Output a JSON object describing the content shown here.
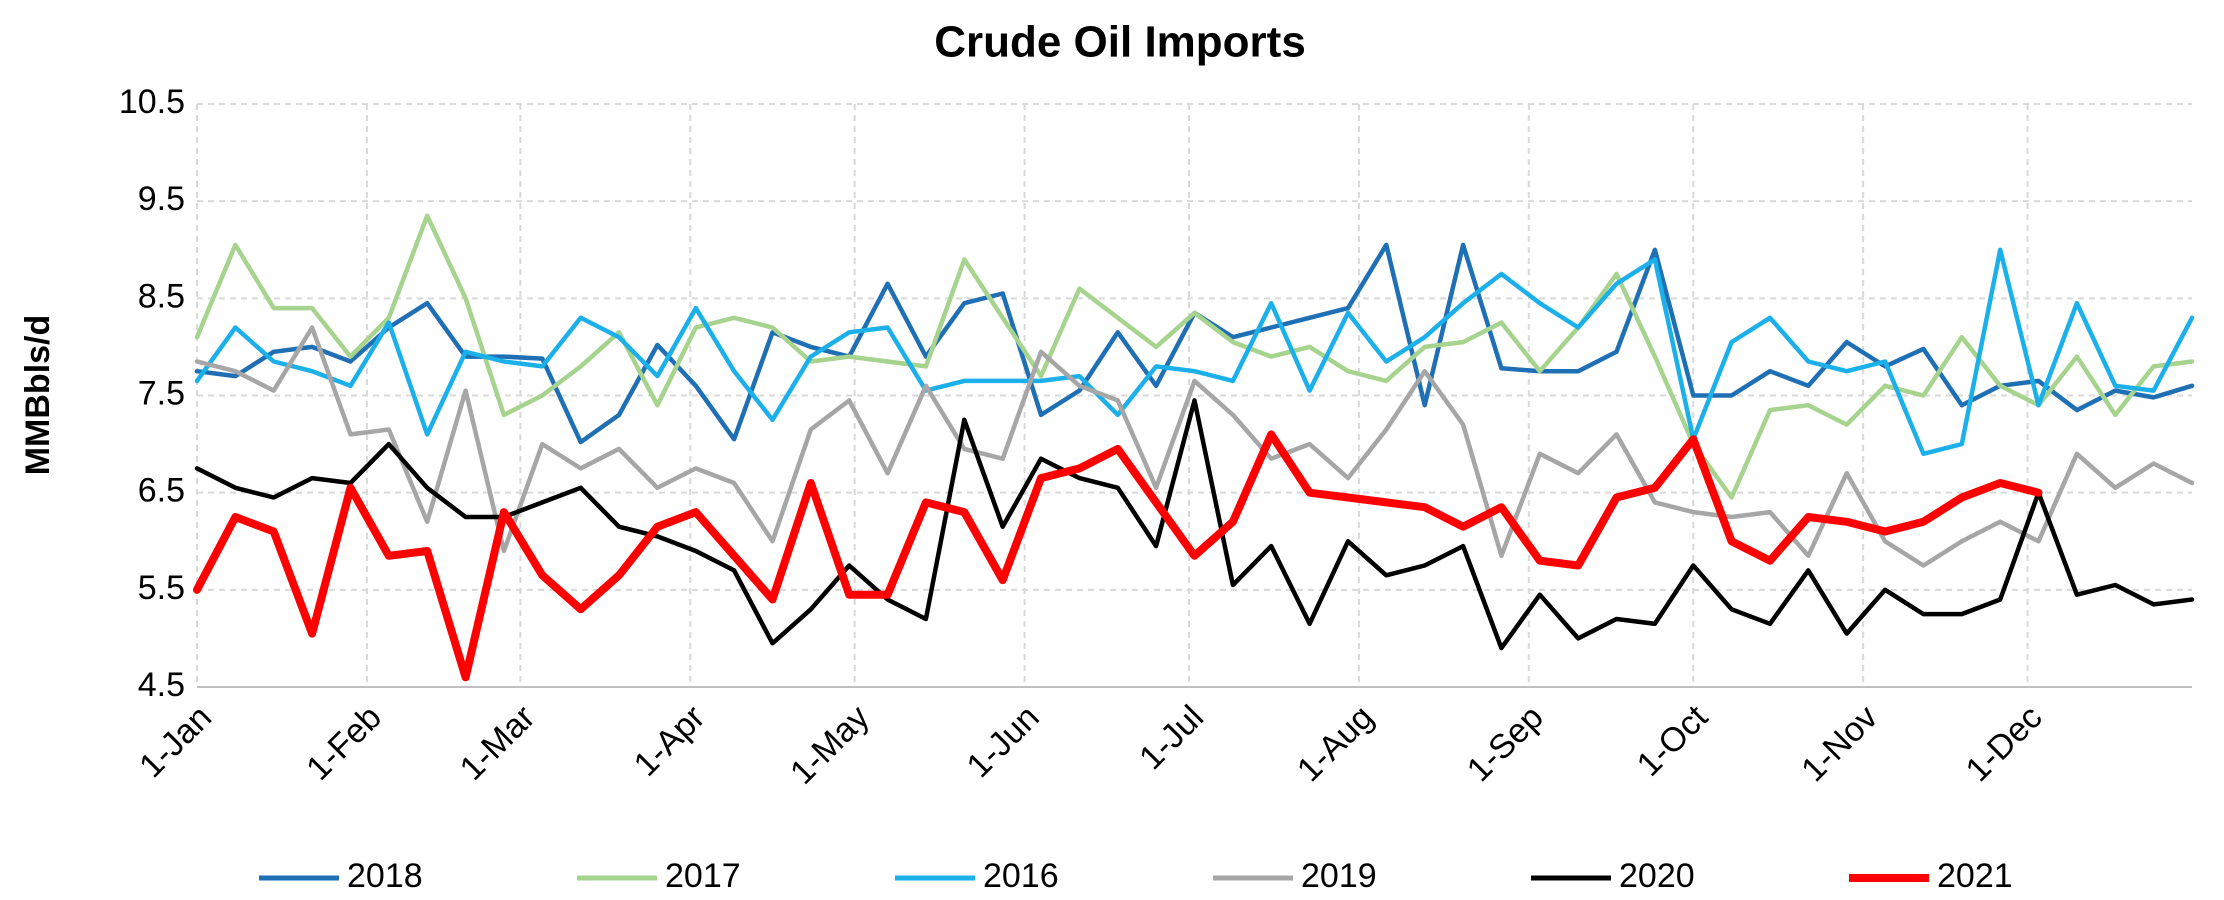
{
  "chart_data": {
    "type": "line",
    "title": "Crude Oil Imports",
    "ylabel": "MMBbls/d",
    "x": [
      1,
      8,
      15,
      22,
      29,
      36,
      43,
      50,
      57,
      64,
      71,
      78,
      85,
      92,
      99,
      106,
      113,
      120,
      127,
      134,
      141,
      148,
      155,
      162,
      169,
      176,
      183,
      190,
      197,
      204,
      211,
      218,
      225,
      232,
      239,
      246,
      253,
      260,
      267,
      274,
      281,
      288,
      295,
      302,
      309,
      316,
      323,
      330,
      337,
      344,
      351,
      358,
      365
    ],
    "xlim": [
      1,
      365
    ],
    "xticks": [
      {
        "value": 1,
        "label": "1-Jan"
      },
      {
        "value": 32,
        "label": "1-Feb"
      },
      {
        "value": 60,
        "label": "1-Mar"
      },
      {
        "value": 91,
        "label": "1-Apr"
      },
      {
        "value": 121,
        "label": "1-May"
      },
      {
        "value": 152,
        "label": "1-Jun"
      },
      {
        "value": 182,
        "label": "1-Jul"
      },
      {
        "value": 213,
        "label": "1-Aug"
      },
      {
        "value": 244,
        "label": "1-Sep"
      },
      {
        "value": 274,
        "label": "1-Oct"
      },
      {
        "value": 305,
        "label": "1-Nov"
      },
      {
        "value": 335,
        "label": "1-Dec"
      }
    ],
    "ylim": [
      4.5,
      10.5
    ],
    "yticks": [
      4.5,
      5.5,
      6.5,
      7.5,
      8.5,
      9.5,
      10.5
    ],
    "grid": true,
    "legend": "bottom",
    "series": [
      {
        "name": "2018",
        "color": "#1f6fb5",
        "values": [
          7.75,
          7.7,
          7.95,
          8.0,
          7.85,
          8.2,
          8.45,
          7.9,
          7.9,
          7.88,
          7.02,
          7.3,
          8.02,
          7.6,
          7.05,
          8.15,
          8.0,
          7.9,
          8.65,
          7.9,
          8.45,
          8.55,
          7.3,
          7.55,
          8.15,
          7.6,
          8.35,
          8.1,
          8.2,
          8.3,
          8.4,
          9.05,
          7.4,
          9.05,
          7.78,
          7.75,
          7.75,
          7.95,
          9.0,
          7.5,
          7.5,
          7.75,
          7.6,
          8.05,
          7.8,
          7.98,
          7.4,
          7.6,
          7.65,
          7.35,
          7.55,
          7.48,
          7.6
        ]
      },
      {
        "name": "2017",
        "color": "#a6d38d",
        "values": [
          8.1,
          9.05,
          8.4,
          8.4,
          7.9,
          8.3,
          9.35,
          8.5,
          7.3,
          7.5,
          7.8,
          8.15,
          7.4,
          8.2,
          8.3,
          8.2,
          7.85,
          7.9,
          7.85,
          7.8,
          8.9,
          8.3,
          7.7,
          8.6,
          8.3,
          8.0,
          8.35,
          8.05,
          7.9,
          8.0,
          7.75,
          7.65,
          8.0,
          8.05,
          8.25,
          7.75,
          8.2,
          8.75,
          7.9,
          7.0,
          6.45,
          7.35,
          7.4,
          7.2,
          7.6,
          7.5,
          8.1,
          7.6,
          7.4,
          7.9,
          7.3,
          7.8,
          7.85
        ]
      },
      {
        "name": "2016",
        "color": "#1cb0ea",
        "values": [
          7.65,
          8.2,
          7.85,
          7.75,
          7.6,
          8.25,
          7.1,
          7.95,
          7.85,
          7.8,
          8.3,
          8.1,
          7.7,
          8.4,
          7.75,
          7.25,
          7.9,
          8.15,
          8.2,
          7.55,
          7.65,
          7.65,
          7.65,
          7.7,
          7.3,
          7.8,
          7.75,
          7.65,
          8.45,
          7.55,
          8.35,
          7.85,
          8.1,
          8.45,
          8.75,
          8.45,
          8.2,
          8.65,
          8.9,
          7.05,
          8.05,
          8.3,
          7.85,
          7.75,
          7.85,
          6.9,
          7.0,
          9.0,
          7.4,
          8.45,
          7.6,
          7.55,
          8.3
        ]
      },
      {
        "name": "2019",
        "color": "#a6a6a6",
        "values": [
          7.85,
          7.75,
          7.55,
          8.2,
          7.1,
          7.15,
          6.2,
          7.55,
          5.9,
          7.0,
          6.75,
          6.95,
          6.55,
          6.75,
          6.6,
          6.0,
          7.15,
          7.45,
          6.7,
          7.6,
          6.95,
          6.85,
          7.95,
          7.6,
          7.45,
          6.55,
          7.65,
          7.3,
          6.85,
          7.0,
          6.65,
          7.15,
          7.75,
          7.2,
          5.85,
          6.9,
          6.7,
          7.1,
          6.4,
          6.3,
          6.25,
          6.3,
          5.85,
          6.7,
          6.0,
          5.75,
          6.0,
          6.2,
          6.0,
          6.9,
          6.55,
          6.8,
          6.6
        ]
      },
      {
        "name": "2020",
        "color": "#000000",
        "values": [
          6.75,
          6.55,
          6.45,
          6.65,
          6.6,
          7.0,
          6.55,
          6.25,
          6.25,
          6.4,
          6.55,
          6.15,
          6.05,
          5.9,
          5.7,
          4.95,
          5.3,
          5.75,
          5.4,
          5.2,
          7.25,
          6.15,
          6.85,
          6.65,
          6.55,
          5.95,
          7.45,
          5.55,
          5.95,
          5.15,
          6.0,
          5.65,
          5.75,
          5.95,
          4.9,
          5.45,
          5.0,
          5.2,
          5.15,
          5.75,
          5.3,
          5.15,
          5.7,
          5.05,
          5.5,
          5.25,
          5.25,
          5.4,
          6.5,
          5.45,
          5.55,
          5.35,
          5.4
        ]
      },
      {
        "name": "2021",
        "color": "#ff0000",
        "values": [
          5.5,
          6.25,
          6.1,
          5.05,
          6.55,
          5.85,
          5.9,
          4.6,
          6.3,
          5.65,
          5.3,
          5.65,
          6.15,
          6.3,
          5.85,
          5.4,
          6.6,
          5.45,
          5.45,
          6.4,
          6.3,
          5.6,
          6.65,
          6.75,
          6.95,
          6.4,
          5.85,
          6.2,
          7.1,
          6.5,
          6.45,
          6.4,
          6.35,
          6.15,
          6.35,
          5.8,
          5.75,
          6.45,
          6.55,
          7.05,
          6.0,
          5.8,
          6.25,
          6.2,
          6.1,
          6.2,
          6.45,
          6.6,
          6.5,
          null,
          null,
          null,
          null
        ]
      }
    ]
  }
}
